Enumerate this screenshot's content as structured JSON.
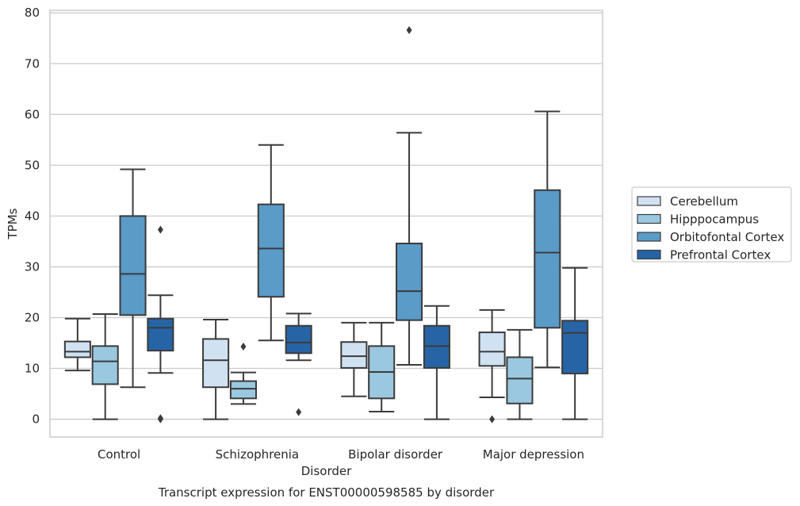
{
  "chart_data": {
    "type": "box",
    "title": "",
    "caption": "Transcript expression for ENST00000598585 by disorder",
    "xlabel": "Disorder",
    "ylabel": "TPMs",
    "ylim": [
      -3.5,
      80.5
    ],
    "yticks": [
      0,
      10,
      20,
      30,
      40,
      50,
      60,
      70,
      80
    ],
    "grid": "horizontal",
    "legend_position": "right",
    "categories": [
      "Control",
      "Schizophrenia",
      "Bipolar disorder",
      "Major depression"
    ],
    "series": [
      {
        "name": "Cerebellum",
        "color": "#d0e1f2",
        "boxes": [
          {
            "whisker_low": 9.6,
            "q1": 12.2,
            "median": 13.3,
            "q3": 15.3,
            "whisker_high": 19.8,
            "outliers": []
          },
          {
            "whisker_low": 0.0,
            "q1": 6.3,
            "median": 11.6,
            "q3": 15.8,
            "whisker_high": 19.6,
            "outliers": []
          },
          {
            "whisker_low": 4.5,
            "q1": 10.1,
            "median": 12.4,
            "q3": 15.2,
            "whisker_high": 19.0,
            "outliers": []
          },
          {
            "whisker_low": 4.3,
            "q1": 10.5,
            "median": 13.3,
            "q3": 17.1,
            "whisker_high": 21.5,
            "outliers": [
              0.0
            ]
          }
        ]
      },
      {
        "name": "Hipppocampus",
        "color": "#9ac8e0",
        "boxes": [
          {
            "whisker_low": 0.0,
            "q1": 6.9,
            "median": 11.4,
            "q3": 14.4,
            "whisker_high": 20.7,
            "outliers": []
          },
          {
            "whisker_low": 3.0,
            "q1": 4.1,
            "median": 6.0,
            "q3": 7.5,
            "whisker_high": 9.2,
            "outliers": [
              14.3
            ]
          },
          {
            "whisker_low": 1.5,
            "q1": 4.1,
            "median": 9.3,
            "q3": 14.4,
            "whisker_high": 19.0,
            "outliers": []
          },
          {
            "whisker_low": 0.0,
            "q1": 3.1,
            "median": 8.0,
            "q3": 12.2,
            "whisker_high": 17.6,
            "outliers": []
          }
        ]
      },
      {
        "name": "Orbitofontal Cortex",
        "color": "#5a9bc8",
        "boxes": [
          {
            "whisker_low": 6.3,
            "q1": 20.5,
            "median": 28.6,
            "q3": 40.0,
            "whisker_high": 49.2,
            "outliers": []
          },
          {
            "whisker_low": 15.5,
            "q1": 24.1,
            "median": 33.6,
            "q3": 42.3,
            "whisker_high": 54.0,
            "outliers": []
          },
          {
            "whisker_low": 10.7,
            "q1": 19.5,
            "median": 25.2,
            "q3": 34.6,
            "whisker_high": 56.4,
            "outliers": [
              76.6
            ]
          },
          {
            "whisker_low": 10.2,
            "q1": 18.0,
            "median": 32.8,
            "q3": 45.1,
            "whisker_high": 60.6,
            "outliers": []
          }
        ]
      },
      {
        "name": "Prefrontal Cortex",
        "color": "#2764a6",
        "boxes": [
          {
            "whisker_low": 9.1,
            "q1": 13.5,
            "median": 18.0,
            "q3": 19.8,
            "whisker_high": 24.4,
            "outliers": [
              37.3,
              0.2,
              0.0
            ]
          },
          {
            "whisker_low": 11.6,
            "q1": 13.0,
            "median": 15.1,
            "q3": 18.4,
            "whisker_high": 20.8,
            "outliers": [
              1.4
            ]
          },
          {
            "whisker_low": 0.0,
            "q1": 10.1,
            "median": 14.4,
            "q3": 18.4,
            "whisker_high": 22.3,
            "outliers": []
          },
          {
            "whisker_low": 0.0,
            "q1": 9.0,
            "median": 17.0,
            "q3": 19.4,
            "whisker_high": 29.8,
            "outliers": []
          }
        ]
      }
    ]
  }
}
